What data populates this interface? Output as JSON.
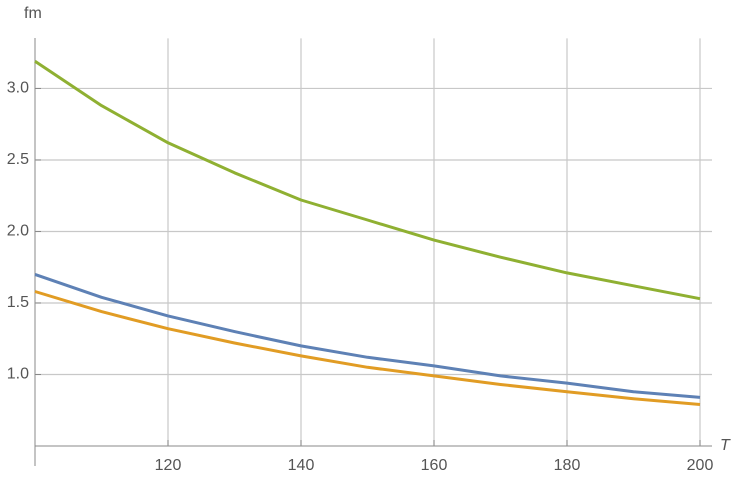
{
  "chart_data": {
    "type": "line",
    "x_label": "T",
    "y_label": "fm",
    "x": [
      100,
      110,
      120,
      130,
      140,
      150,
      160,
      170,
      180,
      190,
      200
    ],
    "series": [
      {
        "color": "#5e81b5",
        "values": [
          1.7,
          1.54,
          1.41,
          1.3,
          1.2,
          1.12,
          1.06,
          0.99,
          0.94,
          0.88,
          0.84
        ]
      },
      {
        "color": "#e19c24",
        "values": [
          1.58,
          1.44,
          1.32,
          1.22,
          1.13,
          1.05,
          0.99,
          0.93,
          0.88,
          0.83,
          0.79
        ]
      },
      {
        "color": "#8fb032",
        "values": [
          3.19,
          2.88,
          2.62,
          2.41,
          2.22,
          2.08,
          1.94,
          1.82,
          1.71,
          1.62,
          1.53
        ]
      }
    ],
    "xlim": [
      100,
      200
    ],
    "xticks": [
      120,
      140,
      160,
      180,
      200
    ],
    "ylim": [
      0.5,
      3.35
    ],
    "yticks": [
      {
        "value": 1,
        "label": "1.0"
      },
      1.5,
      {
        "value": 2,
        "label": "2.0"
      },
      2.5,
      {
        "value": 3,
        "label": "3.0"
      }
    ],
    "grid": true
  }
}
